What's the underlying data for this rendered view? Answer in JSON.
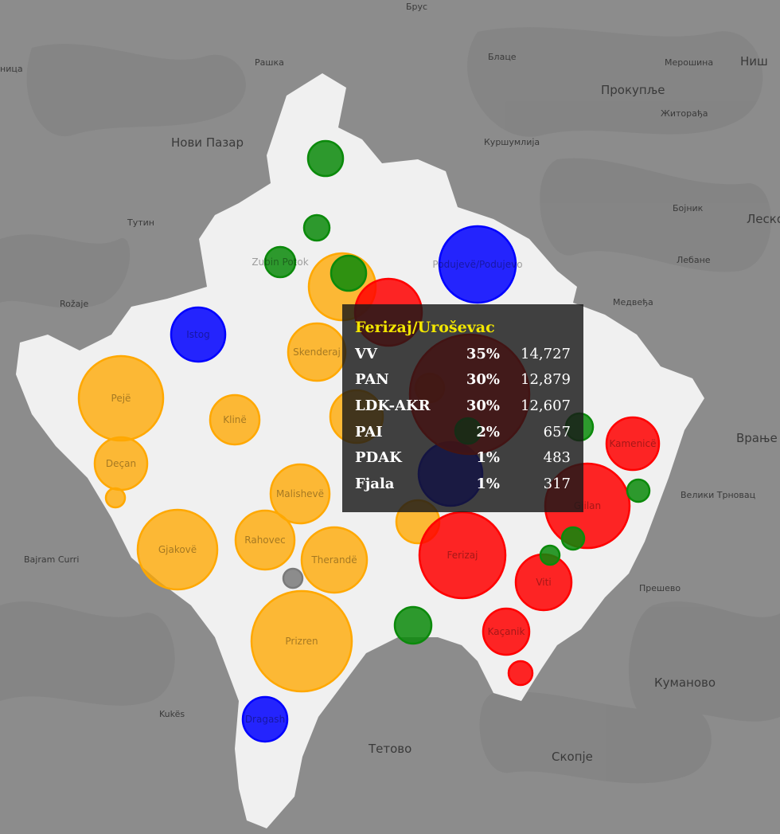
{
  "map": {
    "places": [
      {
        "name": "Брус",
        "class": "sm"
      },
      {
        "name": "Рашка",
        "class": "sm"
      },
      {
        "name": "Блаце",
        "class": "sm"
      },
      {
        "name": "Ниш",
        "class": ""
      },
      {
        "name": "Мерошина",
        "class": "sm"
      },
      {
        "name": "Прокупље",
        "class": ""
      },
      {
        "name": "Нови Пазар",
        "class": ""
      },
      {
        "name": "Житорађа",
        "class": "sm"
      },
      {
        "name": "Куршумлија",
        "class": "sm"
      },
      {
        "name": "Тутин",
        "class": "sm"
      },
      {
        "name": "Бојник",
        "class": "sm"
      },
      {
        "name": "Леско",
        "class": ""
      },
      {
        "name": "Лебане",
        "class": "sm"
      },
      {
        "name": "Rožaje",
        "class": "sm"
      },
      {
        "name": "Медвеђа",
        "class": "sm"
      },
      {
        "name": "Врање",
        "class": ""
      },
      {
        "name": "Велики Трновац",
        "class": "sm"
      },
      {
        "name": "Bajram Curri",
        "class": "sm"
      },
      {
        "name": "Прешево",
        "class": "sm"
      },
      {
        "name": "Куманово",
        "class": ""
      },
      {
        "name": "Kukës",
        "class": "sm"
      },
      {
        "name": "Тетово",
        "class": ""
      },
      {
        "name": "Скопје",
        "class": ""
      },
      {
        "name": "ница",
        "class": "sm"
      }
    ],
    "bubbles": [
      {
        "party": "PDK",
        "label": "Pejë"
      },
      {
        "party": "PDK",
        "label": "Deçan"
      },
      {
        "party": "PDK",
        "label": ""
      },
      {
        "party": "PDK",
        "label": "Gjakovë"
      },
      {
        "party": "PDK",
        "label": "Klinë"
      },
      {
        "party": "PDK",
        "label": "Malishevë"
      },
      {
        "party": "PDK",
        "label": "Rahovec"
      },
      {
        "party": "PDK",
        "label": "Therandë"
      },
      {
        "party": "PDK",
        "label": "Prizren"
      },
      {
        "party": "PDK",
        "label": "Skenderaj"
      },
      {
        "party": "PDK",
        "label": ""
      },
      {
        "party": "PDK",
        "label": ""
      },
      {
        "party": "PDK",
        "label": ""
      },
      {
        "party": "PDK",
        "label": ""
      },
      {
        "party": "LDK",
        "label": "Istog"
      },
      {
        "party": "LDK",
        "label": "Podujevë/Podujevo"
      },
      {
        "party": "LDK",
        "label": "Dragash"
      },
      {
        "party": "LDK",
        "label": ""
      },
      {
        "party": "VV",
        "label": ""
      },
      {
        "party": "VV",
        "label": ""
      },
      {
        "party": "VV",
        "label": "Gjilan"
      },
      {
        "party": "VV",
        "label": "Ferizaj"
      },
      {
        "party": "VV",
        "label": "Kamenicë"
      },
      {
        "party": "VV",
        "label": "Viti"
      },
      {
        "party": "VV",
        "label": "Kaçanik"
      },
      {
        "party": "VV",
        "label": ""
      },
      {
        "party": "SL",
        "label": ""
      },
      {
        "party": "SL",
        "label": ""
      },
      {
        "party": "SL",
        "label": "Zubin Potok"
      },
      {
        "party": "SL",
        "label": ""
      },
      {
        "party": "SL",
        "label": ""
      },
      {
        "party": "SL",
        "label": ""
      },
      {
        "party": "SL",
        "label": ""
      },
      {
        "party": "SL",
        "label": ""
      },
      {
        "party": "SL",
        "label": ""
      },
      {
        "party": "SL",
        "label": ""
      },
      {
        "party": "OTHER",
        "label": ""
      }
    ],
    "colors": {
      "PDK": "#ffa800",
      "LDK": "#0000ff",
      "VV": "#ff0000",
      "SL": "#0b8a0b",
      "OTHER": "#7a7a7a",
      "land_inside": "#f0f0f0",
      "land_outside": "#8c8c8c",
      "tooltip_title": "#f2e600"
    }
  },
  "tooltip": {
    "title": "Ferizaj/Uroševac",
    "rows": [
      {
        "party": "VV",
        "pct": "35%",
        "votes": "14,727"
      },
      {
        "party": "PAN",
        "pct": "30%",
        "votes": "12,879"
      },
      {
        "party": "LDK-AKR",
        "pct": "30%",
        "votes": "12,607"
      },
      {
        "party": "PAI",
        "pct": "2%",
        "votes": "657"
      },
      {
        "party": "PDAK",
        "pct": "1%",
        "votes": "483"
      },
      {
        "party": "Fjala",
        "pct": "1%",
        "votes": "317"
      }
    ]
  }
}
